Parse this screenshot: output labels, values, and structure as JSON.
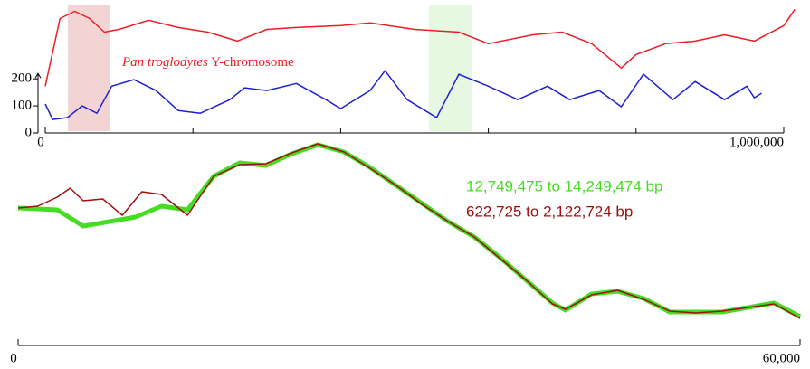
{
  "chart_data": [
    {
      "type": "line",
      "annotation_italic": "Pan troglodytes",
      "annotation": "Y-chromosome",
      "annotation_color": "#ee1c24",
      "xlim": [
        0,
        1000000
      ],
      "xticks": [
        0,
        {
          "value": 1000000,
          "label": "1,000,000"
        }
      ],
      "xminor_ticks": [
        200000,
        400000,
        600000,
        800000
      ],
      "ylim": [
        0,
        475
      ],
      "yticks": [
        0,
        100,
        200
      ],
      "highlights": [
        {
          "start": 30600,
          "end": 88200,
          "color": "#f2d4d4"
        },
        {
          "start": 519600,
          "end": 577200,
          "color": "#e6f8e2"
        }
      ],
      "series": [
        {
          "color": "#ee1c24",
          "x": [
            0,
            20000,
            40000,
            60000,
            80000,
            100000,
            140000,
            180000,
            220000,
            260000,
            300000,
            340000,
            400000,
            440000,
            500000,
            560000,
            600000,
            660000,
            700000,
            740000,
            780000,
            800000,
            840000,
            880000,
            920000,
            960000,
            1000000,
            1015000
          ],
          "values": [
            173,
            423,
            450,
            423,
            373,
            383,
            417,
            390,
            373,
            340,
            383,
            390,
            397,
            407,
            383,
            373,
            330,
            363,
            373,
            330,
            240,
            290,
            330,
            340,
            363,
            340,
            397,
            457
          ]
        },
        {
          "color": "#1f1fd6",
          "x": [
            0,
            10000,
            30000,
            50000,
            70000,
            90000,
            120000,
            150000,
            180000,
            210000,
            250000,
            270000,
            300000,
            340000,
            380000,
            400000,
            440000,
            460000,
            490000,
            530000,
            560000,
            600000,
            640000,
            680000,
            710000,
            750000,
            780000,
            810000,
            850000,
            880000,
            920000,
            950000,
            960000,
            970000
          ],
          "values": [
            107,
            50,
            57,
            100,
            73,
            173,
            197,
            157,
            83,
            73,
            123,
            167,
            157,
            183,
            123,
            90,
            157,
            230,
            123,
            57,
            217,
            173,
            123,
            173,
            123,
            157,
            97,
            217,
            123,
            190,
            123,
            173,
            130,
            147
          ]
        }
      ]
    },
    {
      "type": "line",
      "xlim": [
        0,
        60000
      ],
      "xticks": [
        0,
        {
          "value": 60000,
          "label": "60,000"
        }
      ],
      "ylim": [
        0,
        105
      ],
      "series": [
        {
          "name": "12,749,475 to 14,249,474 bp",
          "color": "#44dd22",
          "width": 5,
          "x": [
            0,
            3000,
            5000,
            7000,
            9000,
            11000,
            13000,
            15000,
            17000,
            19000,
            21000,
            23000,
            25000,
            27000,
            29000,
            31000,
            33000,
            35000,
            37000,
            39000,
            41000,
            42000,
            44000,
            46000,
            48000,
            50000,
            52000,
            54000,
            56000,
            58000,
            60000
          ],
          "values": [
            65,
            64,
            55,
            57.5,
            60,
            66,
            64,
            82.5,
            90,
            88.5,
            95,
            100,
            96,
            87.5,
            77.5,
            67.5,
            57.5,
            49,
            37.5,
            25,
            12.5,
            8.5,
            17.5,
            19,
            15,
            7.5,
            7.5,
            7.5,
            10,
            12.5,
            5
          ]
        },
        {
          "name": "622,725 to 2,122,724 bp",
          "color": "#a01010",
          "width": 1.5,
          "x": [
            0,
            1500,
            3000,
            4000,
            5000,
            6500,
            8000,
            9500,
            11000,
            13000,
            15000,
            17000,
            19000,
            21000,
            23000,
            25000,
            27000,
            29000,
            31000,
            33000,
            35000,
            37000,
            39000,
            41000,
            42000,
            44000,
            46000,
            48000,
            50000,
            52000,
            54000,
            56000,
            58000,
            60000
          ],
          "values": [
            65,
            66,
            71,
            76,
            69,
            70,
            61,
            74,
            72.5,
            61,
            82.5,
            89,
            89.5,
            95.5,
            100.5,
            96,
            87,
            77.5,
            67,
            57.5,
            49,
            37,
            25,
            12,
            9,
            17,
            19.5,
            14.5,
            8,
            7,
            8,
            10,
            12,
            4
          ]
        }
      ]
    }
  ]
}
